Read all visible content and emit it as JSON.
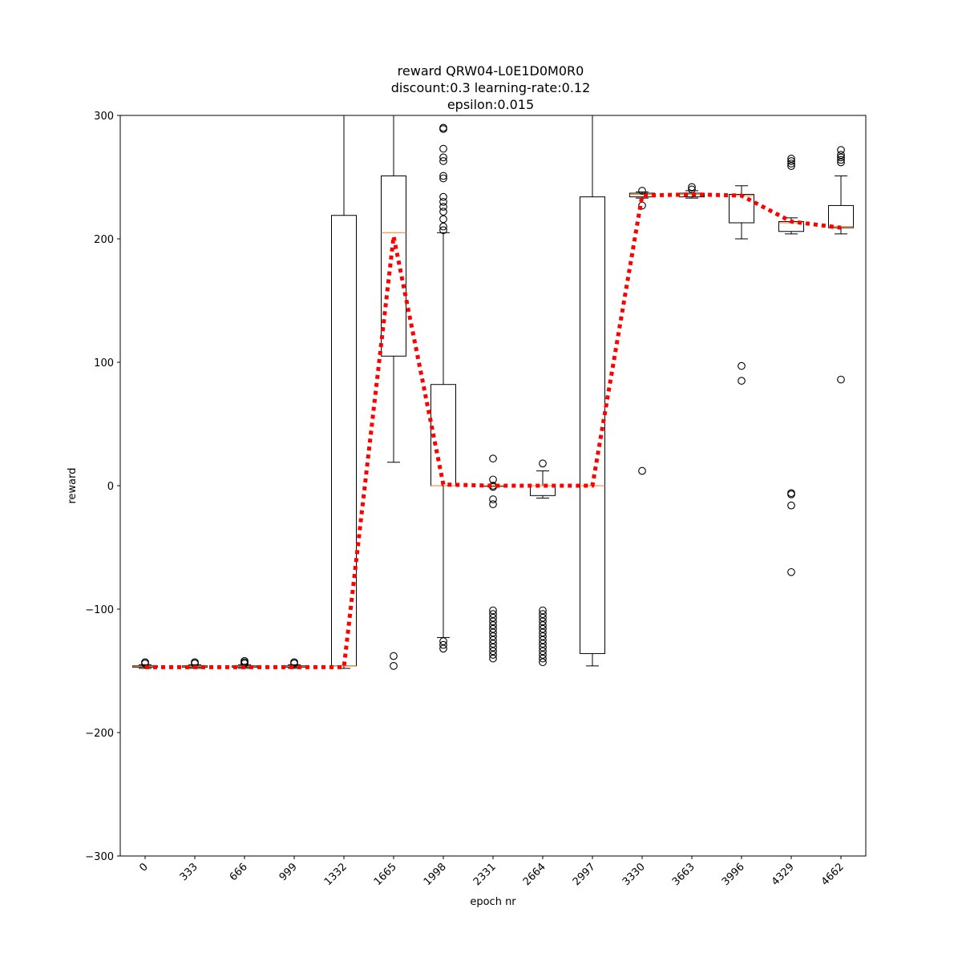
{
  "chart_data": {
    "type": "box",
    "title_lines": [
      "reward QRW04-L0E1D0M0R0",
      "discount:0.3 learning-rate:0.12",
      "epsilon:0.015"
    ],
    "xlabel": "epoch nr",
    "ylabel": "reward",
    "ylim": [
      -300,
      300
    ],
    "yticks": [
      -300,
      -200,
      -100,
      0,
      100,
      200,
      300
    ],
    "ytick_labels": [
      "−300",
      "−200",
      "−100",
      "0",
      "100",
      "200",
      "300"
    ],
    "categories": [
      "0",
      "333",
      "666",
      "999",
      "1332",
      "1665",
      "1998",
      "2331",
      "2664",
      "2997",
      "3330",
      "3663",
      "3996",
      "4329",
      "4662"
    ],
    "boxes": [
      {
        "q1": -147,
        "median": -146.5,
        "q3": -146,
        "whisker_low": -148,
        "whisker_high": -145,
        "outliers": [
          -143,
          -144
        ]
      },
      {
        "q1": -147,
        "median": -146.5,
        "q3": -146,
        "whisker_low": -148,
        "whisker_high": -145,
        "outliers": [
          -143,
          -144
        ]
      },
      {
        "q1": -147,
        "median": -146.5,
        "q3": -146,
        "whisker_low": -148,
        "whisker_high": -145,
        "outliers": [
          -142,
          -143,
          -144
        ]
      },
      {
        "q1": -147,
        "median": -146.5,
        "q3": -146,
        "whisker_low": -148,
        "whisker_high": -145,
        "outliers": [
          -143,
          -144
        ]
      },
      {
        "q1": -146,
        "median": -146,
        "q3": 219,
        "whisker_low": -148,
        "whisker_high": 300,
        "outliers": []
      },
      {
        "q1": 105,
        "median": 205,
        "q3": 251,
        "whisker_low": 19,
        "whisker_high": 300,
        "outliers": [
          -138,
          -146
        ]
      },
      {
        "q1": 0,
        "median": 0,
        "q3": 82,
        "whisker_low": -123,
        "whisker_high": 205,
        "outliers": [
          290,
          289,
          273,
          266,
          263,
          251,
          249,
          234,
          230,
          226,
          222,
          216,
          210,
          207,
          -126,
          -129,
          -132
        ]
      },
      {
        "q1": 0,
        "median": 0,
        "q3": 0,
        "whisker_low": 0,
        "whisker_high": 0,
        "outliers": [
          22,
          5,
          0,
          -1,
          -11,
          -15,
          -101,
          -104,
          -107,
          -110,
          -113,
          -116,
          -119,
          -122,
          -125,
          -128,
          -131,
          -134,
          -137,
          -140
        ]
      },
      {
        "q1": -8,
        "median": 0,
        "q3": 0,
        "whisker_low": -10,
        "whisker_high": 12,
        "outliers": [
          18,
          -101,
          -104,
          -107,
          -110,
          -113,
          -116,
          -119,
          -122,
          -125,
          -128,
          -131,
          -134,
          -137,
          -140,
          -143
        ]
      },
      {
        "q1": -136,
        "median": 0,
        "q3": 234,
        "whisker_low": -146,
        "whisker_high": 300,
        "outliers": []
      },
      {
        "q1": 234,
        "median": 236,
        "q3": 237,
        "whisker_low": 233,
        "whisker_high": 238,
        "outliers": [
          239,
          227,
          12
        ]
      },
      {
        "q1": 234,
        "median": 236,
        "q3": 237,
        "whisker_low": 233,
        "whisker_high": 239,
        "outliers": [
          242,
          240
        ]
      },
      {
        "q1": 213,
        "median": 235,
        "q3": 236,
        "whisker_low": 200,
        "whisker_high": 243,
        "outliers": [
          97,
          85
        ]
      },
      {
        "q1": 206,
        "median": 213,
        "q3": 214,
        "whisker_low": 204,
        "whisker_high": 217,
        "outliers": [
          265,
          263,
          261,
          259,
          -6,
          -7,
          -16,
          -70
        ]
      },
      {
        "q1": 209,
        "median": 210,
        "q3": 227,
        "whisker_low": 204,
        "whisker_high": 251,
        "outliers": [
          272,
          268,
          266,
          264,
          262,
          86
        ]
      }
    ],
    "mean_line": {
      "name": "",
      "values": [
        -147,
        -147,
        -147,
        -147,
        -147,
        202,
        1,
        0,
        0,
        0,
        235,
        236,
        235,
        214,
        209
      ],
      "color": "#ff0000",
      "style": "dotted"
    },
    "box_color": "#000000",
    "median_color": "#ff7f0e",
    "grid": false
  }
}
